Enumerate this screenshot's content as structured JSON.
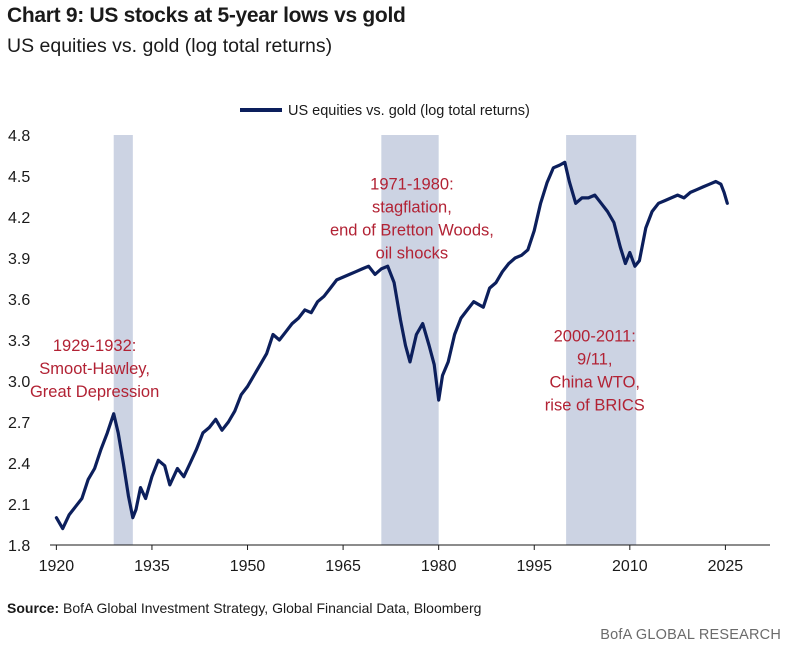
{
  "header": {
    "title": "Chart 9: US stocks at 5-year lows vs gold",
    "subtitle": "US equities vs. gold (log total returns)"
  },
  "footer": {
    "source_label": "Source:",
    "source_text": "BofA Global Investment Strategy, Global Financial Data, Bloomberg",
    "brand": "BofA GLOBAL RESEARCH"
  },
  "colors": {
    "line": "#0c1f5c",
    "shade": "#ccd3e3",
    "annotation": "#b22234",
    "axis": "#1a1a1a"
  },
  "chart_data": {
    "type": "line",
    "title": "US equities vs. gold (log total returns)",
    "xlabel": "",
    "ylabel": "",
    "xlim": [
      1919,
      2032
    ],
    "ylim": [
      1.8,
      4.8
    ],
    "legend": "top-center",
    "grid": false,
    "x_ticks": [
      1920,
      1935,
      1950,
      1965,
      1980,
      1995,
      2010,
      2025
    ],
    "y_ticks": [
      1.8,
      2.1,
      2.4,
      2.7,
      3.0,
      3.3,
      3.6,
      3.9,
      4.2,
      4.5,
      4.8
    ],
    "y_tick_labels": [
      "1.8",
      "2.1",
      "2.4",
      "2.7",
      "3.0",
      "3.3",
      "3.6",
      "3.9",
      "4.2",
      "4.5",
      "4.8"
    ],
    "series": [
      {
        "name": "US equities vs. gold (log total returns)",
        "x": [
          1920,
          1921,
          1922,
          1923,
          1924,
          1925,
          1926,
          1927,
          1928,
          1929,
          1929.7,
          1930.5,
          1931.3,
          1932.0,
          1932.5,
          1933.2,
          1934,
          1935,
          1936,
          1937,
          1937.8,
          1939,
          1940,
          1941,
          1942,
          1943,
          1944,
          1945,
          1946,
          1947,
          1948,
          1949,
          1950,
          1951,
          1952,
          1953,
          1954,
          1955,
          1956,
          1957,
          1958,
          1959,
          1960,
          1961,
          1962,
          1963,
          1964,
          1965,
          1966,
          1967,
          1968,
          1969,
          1970,
          1971,
          1972,
          1973,
          1974,
          1974.8,
          1975.5,
          1976.5,
          1977.5,
          1978.5,
          1979.3,
          1980.0,
          1980.6,
          1981.5,
          1982.5,
          1983.5,
          1984.5,
          1985.5,
          1987,
          1988,
          1989,
          1990,
          1991,
          1992,
          1993,
          1994,
          1995,
          1996,
          1997,
          1998,
          1999,
          1999.8,
          2000.5,
          2001.5,
          2002.5,
          2003.5,
          2004.5,
          2005.5,
          2006.5,
          2007.5,
          2008.5,
          2009.3,
          2010,
          2010.8,
          2011.5,
          2012.5,
          2013.5,
          2014.5,
          2015.5,
          2016.5,
          2017.5,
          2018.5,
          2019.5,
          2020.5,
          2021.5,
          2022.5,
          2023.5,
          2024.3,
          2024.8,
          2025.3
        ],
        "values": [
          2.0,
          1.92,
          2.02,
          2.08,
          2.14,
          2.28,
          2.36,
          2.5,
          2.62,
          2.76,
          2.62,
          2.4,
          2.16,
          2.0,
          2.06,
          2.22,
          2.14,
          2.3,
          2.42,
          2.38,
          2.24,
          2.36,
          2.3,
          2.4,
          2.5,
          2.62,
          2.66,
          2.72,
          2.64,
          2.7,
          2.78,
          2.9,
          2.96,
          3.04,
          3.12,
          3.2,
          3.34,
          3.3,
          3.36,
          3.42,
          3.46,
          3.52,
          3.5,
          3.58,
          3.62,
          3.68,
          3.74,
          3.76,
          3.78,
          3.8,
          3.82,
          3.84,
          3.78,
          3.82,
          3.84,
          3.72,
          3.45,
          3.26,
          3.14,
          3.34,
          3.42,
          3.26,
          3.12,
          2.86,
          3.04,
          3.14,
          3.34,
          3.46,
          3.52,
          3.58,
          3.54,
          3.68,
          3.72,
          3.8,
          3.86,
          3.9,
          3.92,
          3.96,
          4.1,
          4.3,
          4.45,
          4.56,
          4.58,
          4.6,
          4.46,
          4.3,
          4.34,
          4.34,
          4.36,
          4.3,
          4.24,
          4.16,
          3.98,
          3.86,
          3.94,
          3.84,
          3.88,
          4.12,
          4.24,
          4.3,
          4.32,
          4.34,
          4.36,
          4.34,
          4.38,
          4.4,
          4.42,
          4.44,
          4.46,
          4.44,
          4.38,
          4.3
        ]
      }
    ],
    "shaded_periods": [
      {
        "start": 1929,
        "end": 1932
      },
      {
        "start": 1971,
        "end": 1980
      },
      {
        "start": 2000,
        "end": 2011
      }
    ],
    "annotations": [
      {
        "anchor_year": 1926,
        "anchor_value": 3.22,
        "lines": [
          "1929-1932:",
          "Smoot-Hawley,",
          "Great Depression"
        ]
      },
      {
        "anchor_year": 1975.8,
        "anchor_value": 4.4,
        "lines": [
          "1971-1980:",
          "stagflation,",
          "end of Bretton Woods,",
          "oil shocks"
        ]
      },
      {
        "anchor_year": 2004.5,
        "anchor_value": 3.29,
        "lines": [
          "2000-2011:",
          "9/11,",
          "China WTO,",
          "rise of BRICS"
        ]
      }
    ]
  }
}
